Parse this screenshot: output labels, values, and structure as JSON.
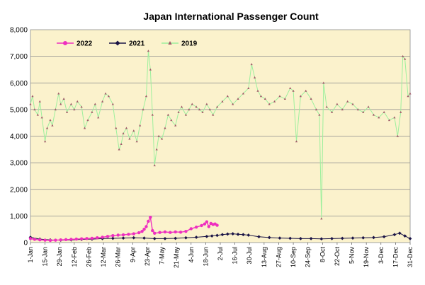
{
  "chart_data": {
    "type": "line",
    "title": "Japan International Passenger Count",
    "xlabel": "",
    "ylabel": "",
    "ylim": [
      0,
      8000
    ],
    "yticks": [
      "0",
      "1,000",
      "2,000",
      "3,000",
      "4,000",
      "5,000",
      "6,000",
      "7,000",
      "8,000"
    ],
    "xlim_days": [
      1,
      365
    ],
    "xticks": [
      {
        "day": 1,
        "label": "1-Jan"
      },
      {
        "day": 15,
        "label": "15-Jan"
      },
      {
        "day": 29,
        "label": "29-Jan"
      },
      {
        "day": 43,
        "label": "12-Feb"
      },
      {
        "day": 57,
        "label": "26-Feb"
      },
      {
        "day": 71,
        "label": "12-Mar"
      },
      {
        "day": 85,
        "label": "26-Mar"
      },
      {
        "day": 99,
        "label": "9-Apr"
      },
      {
        "day": 113,
        "label": "23-Apr"
      },
      {
        "day": 127,
        "label": "7-May"
      },
      {
        "day": 141,
        "label": "21-May"
      },
      {
        "day": 155,
        "label": "4-Jun"
      },
      {
        "day": 169,
        "label": "18-Jun"
      },
      {
        "day": 183,
        "label": "2-Jul"
      },
      {
        "day": 197,
        "label": "16-Jul"
      },
      {
        "day": 211,
        "label": "30-Jul"
      },
      {
        "day": 225,
        "label": "13-Aug"
      },
      {
        "day": 239,
        "label": "27-Aug"
      },
      {
        "day": 253,
        "label": "10-Sep"
      },
      {
        "day": 267,
        "label": "24-Sep"
      },
      {
        "day": 281,
        "label": "8-Oct"
      },
      {
        "day": 295,
        "label": "22-Oct"
      },
      {
        "day": 309,
        "label": "5-Nov"
      },
      {
        "day": 323,
        "label": "19-Nov"
      },
      {
        "day": 337,
        "label": "3-Dec"
      },
      {
        "day": 351,
        "label": "17-Dec"
      },
      {
        "day": 365,
        "label": "31-Dec"
      }
    ],
    "grid": true,
    "legend": "top-left",
    "colors": {
      "plot_bg": "#fbf2cc",
      "grid": "#8c8c8c",
      "s2022": "#ee2fbf",
      "s2021": "#1a1446",
      "s2019_line": "#9df09d",
      "s2019_marker": "#a05a6a"
    },
    "series": [
      {
        "name": "2022",
        "x": [
          1,
          5,
          10,
          15,
          20,
          25,
          30,
          35,
          40,
          45,
          50,
          55,
          60,
          65,
          70,
          75,
          80,
          85,
          90,
          95,
          100,
          105,
          108,
          110,
          112,
          114,
          116,
          118,
          120,
          125,
          130,
          135,
          140,
          145,
          150,
          155,
          160,
          165,
          168,
          170,
          172,
          174,
          176,
          178,
          180
        ],
        "y": [
          150,
          120,
          100,
          90,
          80,
          90,
          100,
          110,
          120,
          130,
          140,
          150,
          160,
          180,
          200,
          230,
          260,
          280,
          290,
          310,
          330,
          370,
          420,
          500,
          600,
          800,
          950,
          450,
          350,
          380,
          400,
          380,
          400,
          390,
          420,
          520,
          580,
          640,
          700,
          780,
          600,
          720,
          680,
          700,
          650
        ]
      },
      {
        "name": "2021",
        "x": [
          1,
          10,
          20,
          30,
          40,
          50,
          60,
          70,
          80,
          90,
          100,
          110,
          120,
          130,
          140,
          150,
          160,
          170,
          175,
          180,
          185,
          190,
          195,
          200,
          205,
          210,
          220,
          230,
          240,
          250,
          260,
          270,
          280,
          290,
          300,
          310,
          320,
          330,
          340,
          350,
          355,
          360,
          365
        ],
        "y": [
          200,
          130,
          100,
          90,
          100,
          120,
          130,
          150,
          160,
          170,
          180,
          170,
          150,
          150,
          160,
          180,
          200,
          230,
          250,
          270,
          300,
          320,
          330,
          310,
          300,
          280,
          220,
          190,
          170,
          160,
          150,
          150,
          140,
          150,
          160,
          170,
          180,
          190,
          220,
          300,
          350,
          250,
          150
        ]
      },
      {
        "name": "2019",
        "x": [
          1,
          3,
          5,
          8,
          10,
          12,
          15,
          17,
          20,
          22,
          25,
          28,
          30,
          33,
          36,
          40,
          43,
          46,
          50,
          53,
          56,
          60,
          63,
          66,
          70,
          73,
          76,
          80,
          83,
          86,
          88,
          90,
          93,
          96,
          100,
          103,
          106,
          109,
          112,
          114,
          116,
          118,
          120,
          122,
          124,
          127,
          130,
          133,
          136,
          140,
          143,
          146,
          150,
          153,
          156,
          160,
          163,
          166,
          170,
          173,
          176,
          180,
          185,
          190,
          195,
          200,
          205,
          210,
          213,
          216,
          219,
          222,
          226,
          230,
          235,
          240,
          245,
          250,
          253,
          256,
          260,
          265,
          270,
          275,
          278,
          280,
          282,
          285,
          290,
          295,
          300,
          305,
          310,
          315,
          320,
          325,
          330,
          335,
          340,
          345,
          350,
          353,
          356,
          358,
          360,
          363,
          365
        ],
        "y": [
          5200,
          5500,
          5000,
          4800,
          5300,
          4700,
          3800,
          4300,
          4600,
          4400,
          5000,
          5600,
          5200,
          5400,
          4900,
          5200,
          5000,
          5300,
          5100,
          4300,
          4600,
          4900,
          5200,
          4700,
          5300,
          5600,
          5500,
          5200,
          4300,
          3500,
          3700,
          4100,
          4300,
          3900,
          4200,
          3800,
          4400,
          5000,
          5500,
          7200,
          6500,
          4800,
          2900,
          3500,
          4000,
          3900,
          4300,
          4800,
          4600,
          4400,
          4900,
          5100,
          4800,
          5000,
          5200,
          5100,
          5000,
          4900,
          5200,
          5000,
          4800,
          5100,
          5300,
          5500,
          5200,
          5400,
          5600,
          5800,
          6700,
          6200,
          5700,
          5500,
          5400,
          5200,
          5300,
          5500,
          5400,
          5800,
          5700,
          3800,
          5500,
          5700,
          5400,
          5000,
          4800,
          900,
          6000,
          5100,
          4900,
          5200,
          5000,
          5300,
          5200,
          5000,
          4900,
          5100,
          4800,
          4700,
          4900,
          4600,
          4700,
          4000,
          4900,
          7000,
          6900,
          5500,
          5600
        ]
      }
    ]
  }
}
